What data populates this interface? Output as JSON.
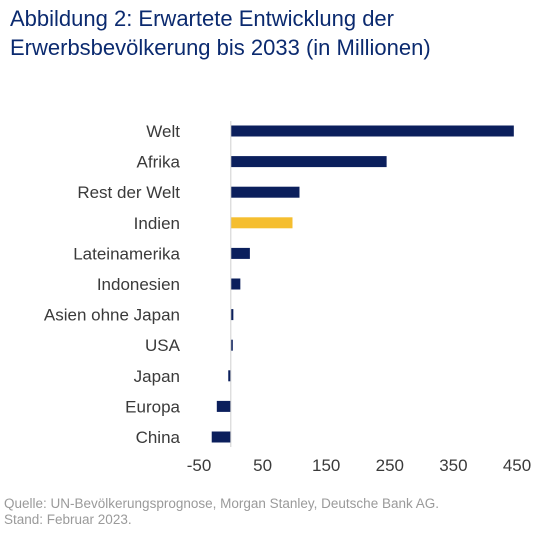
{
  "title_line1": "Abbildung 2: Erwartete Entwicklung der",
  "title_line2": "Erwerbsbevölkerung bis 2033 (in Millionen)",
  "source_line1": "Quelle: UN-Bevölkerungsprognose, Morgan Stanley, Deutsche Bank AG.",
  "source_line2": "Stand: Februar 2023.",
  "colors": {
    "bar": "#0b1f5c",
    "highlight": "#f5be2f",
    "title": "#0b2a6f",
    "text": "#3a3a3a",
    "source": "#9a9a9a"
  },
  "chart_data": {
    "type": "bar",
    "orientation": "horizontal",
    "categories": [
      "Welt",
      "Afrika",
      "Rest der Welt",
      "Indien",
      "Lateinamerika",
      "Indonesien",
      "Asien ohne Japan",
      "USA",
      "Japan",
      "Europa",
      "China"
    ],
    "values": [
      445,
      245,
      108,
      97,
      30,
      15,
      4,
      3,
      -4,
      -22,
      -30
    ],
    "highlight_category": "Indien",
    "xlim": [
      -50,
      450
    ],
    "xticks": [
      -50,
      50,
      150,
      250,
      350,
      450
    ],
    "grid": false,
    "legend": "none"
  }
}
